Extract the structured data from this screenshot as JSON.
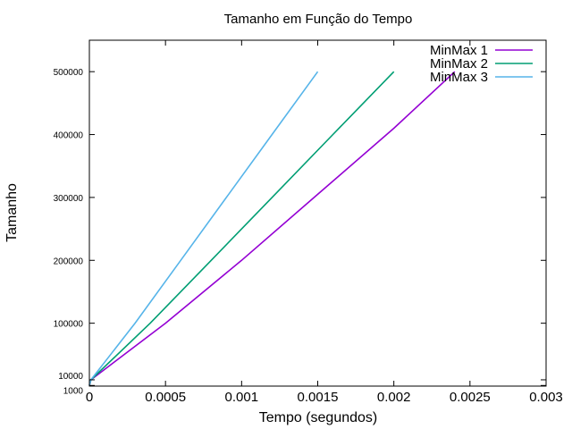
{
  "chart_data": {
    "type": "line",
    "title": "Tamanho em Função do Tempo",
    "xlabel": "Tempo (segundos)",
    "ylabel": "Tamanho",
    "xlim": [
      0,
      0.003
    ],
    "ylim": [
      0,
      550000
    ],
    "x_ticks": [
      {
        "value": 0,
        "label": "0"
      },
      {
        "value": 0.0005,
        "label": "0.0005"
      },
      {
        "value": 0.001,
        "label": "0.001"
      },
      {
        "value": 0.0015,
        "label": "0.0015"
      },
      {
        "value": 0.002,
        "label": "0.002"
      },
      {
        "value": 0.0025,
        "label": "0.0025"
      },
      {
        "value": 0.003,
        "label": "0.003"
      }
    ],
    "y_ticks": [
      {
        "value": 1000,
        "label": "1000"
      },
      {
        "value": 10000,
        "label": "10000"
      },
      {
        "value": 100000,
        "label": "100000"
      },
      {
        "value": 200000,
        "label": "200000"
      },
      {
        "value": 300000,
        "label": "300000"
      },
      {
        "value": 400000,
        "label": "400000"
      },
      {
        "value": 500000,
        "label": "500000"
      }
    ],
    "grid": false,
    "legend_position": "top-right",
    "series": [
      {
        "name": "MinMax 1",
        "color": "#9400d3",
        "points": [
          [
            0,
            1000
          ],
          [
            1e-05,
            10000
          ],
          [
            0.0005,
            100000
          ],
          [
            0.001,
            200000
          ],
          [
            0.0015,
            305000
          ],
          [
            0.002,
            410000
          ],
          [
            0.0024,
            500000
          ]
        ]
      },
      {
        "name": "MinMax 2",
        "color": "#009e73",
        "points": [
          [
            0,
            1000
          ],
          [
            1e-05,
            10000
          ],
          [
            0.0004,
            100000
          ],
          [
            0.0008,
            200000
          ],
          [
            0.0012,
            300000
          ],
          [
            0.0016,
            400000
          ],
          [
            0.002,
            500000
          ]
        ]
      },
      {
        "name": "MinMax 3",
        "color": "#56b4e9",
        "points": [
          [
            0,
            1000
          ],
          [
            1e-05,
            10000
          ],
          [
            0.0003,
            100000
          ],
          [
            0.0006,
            200000
          ],
          [
            0.0009,
            300000
          ],
          [
            0.0012,
            400000
          ],
          [
            0.0015,
            500000
          ]
        ]
      }
    ]
  }
}
